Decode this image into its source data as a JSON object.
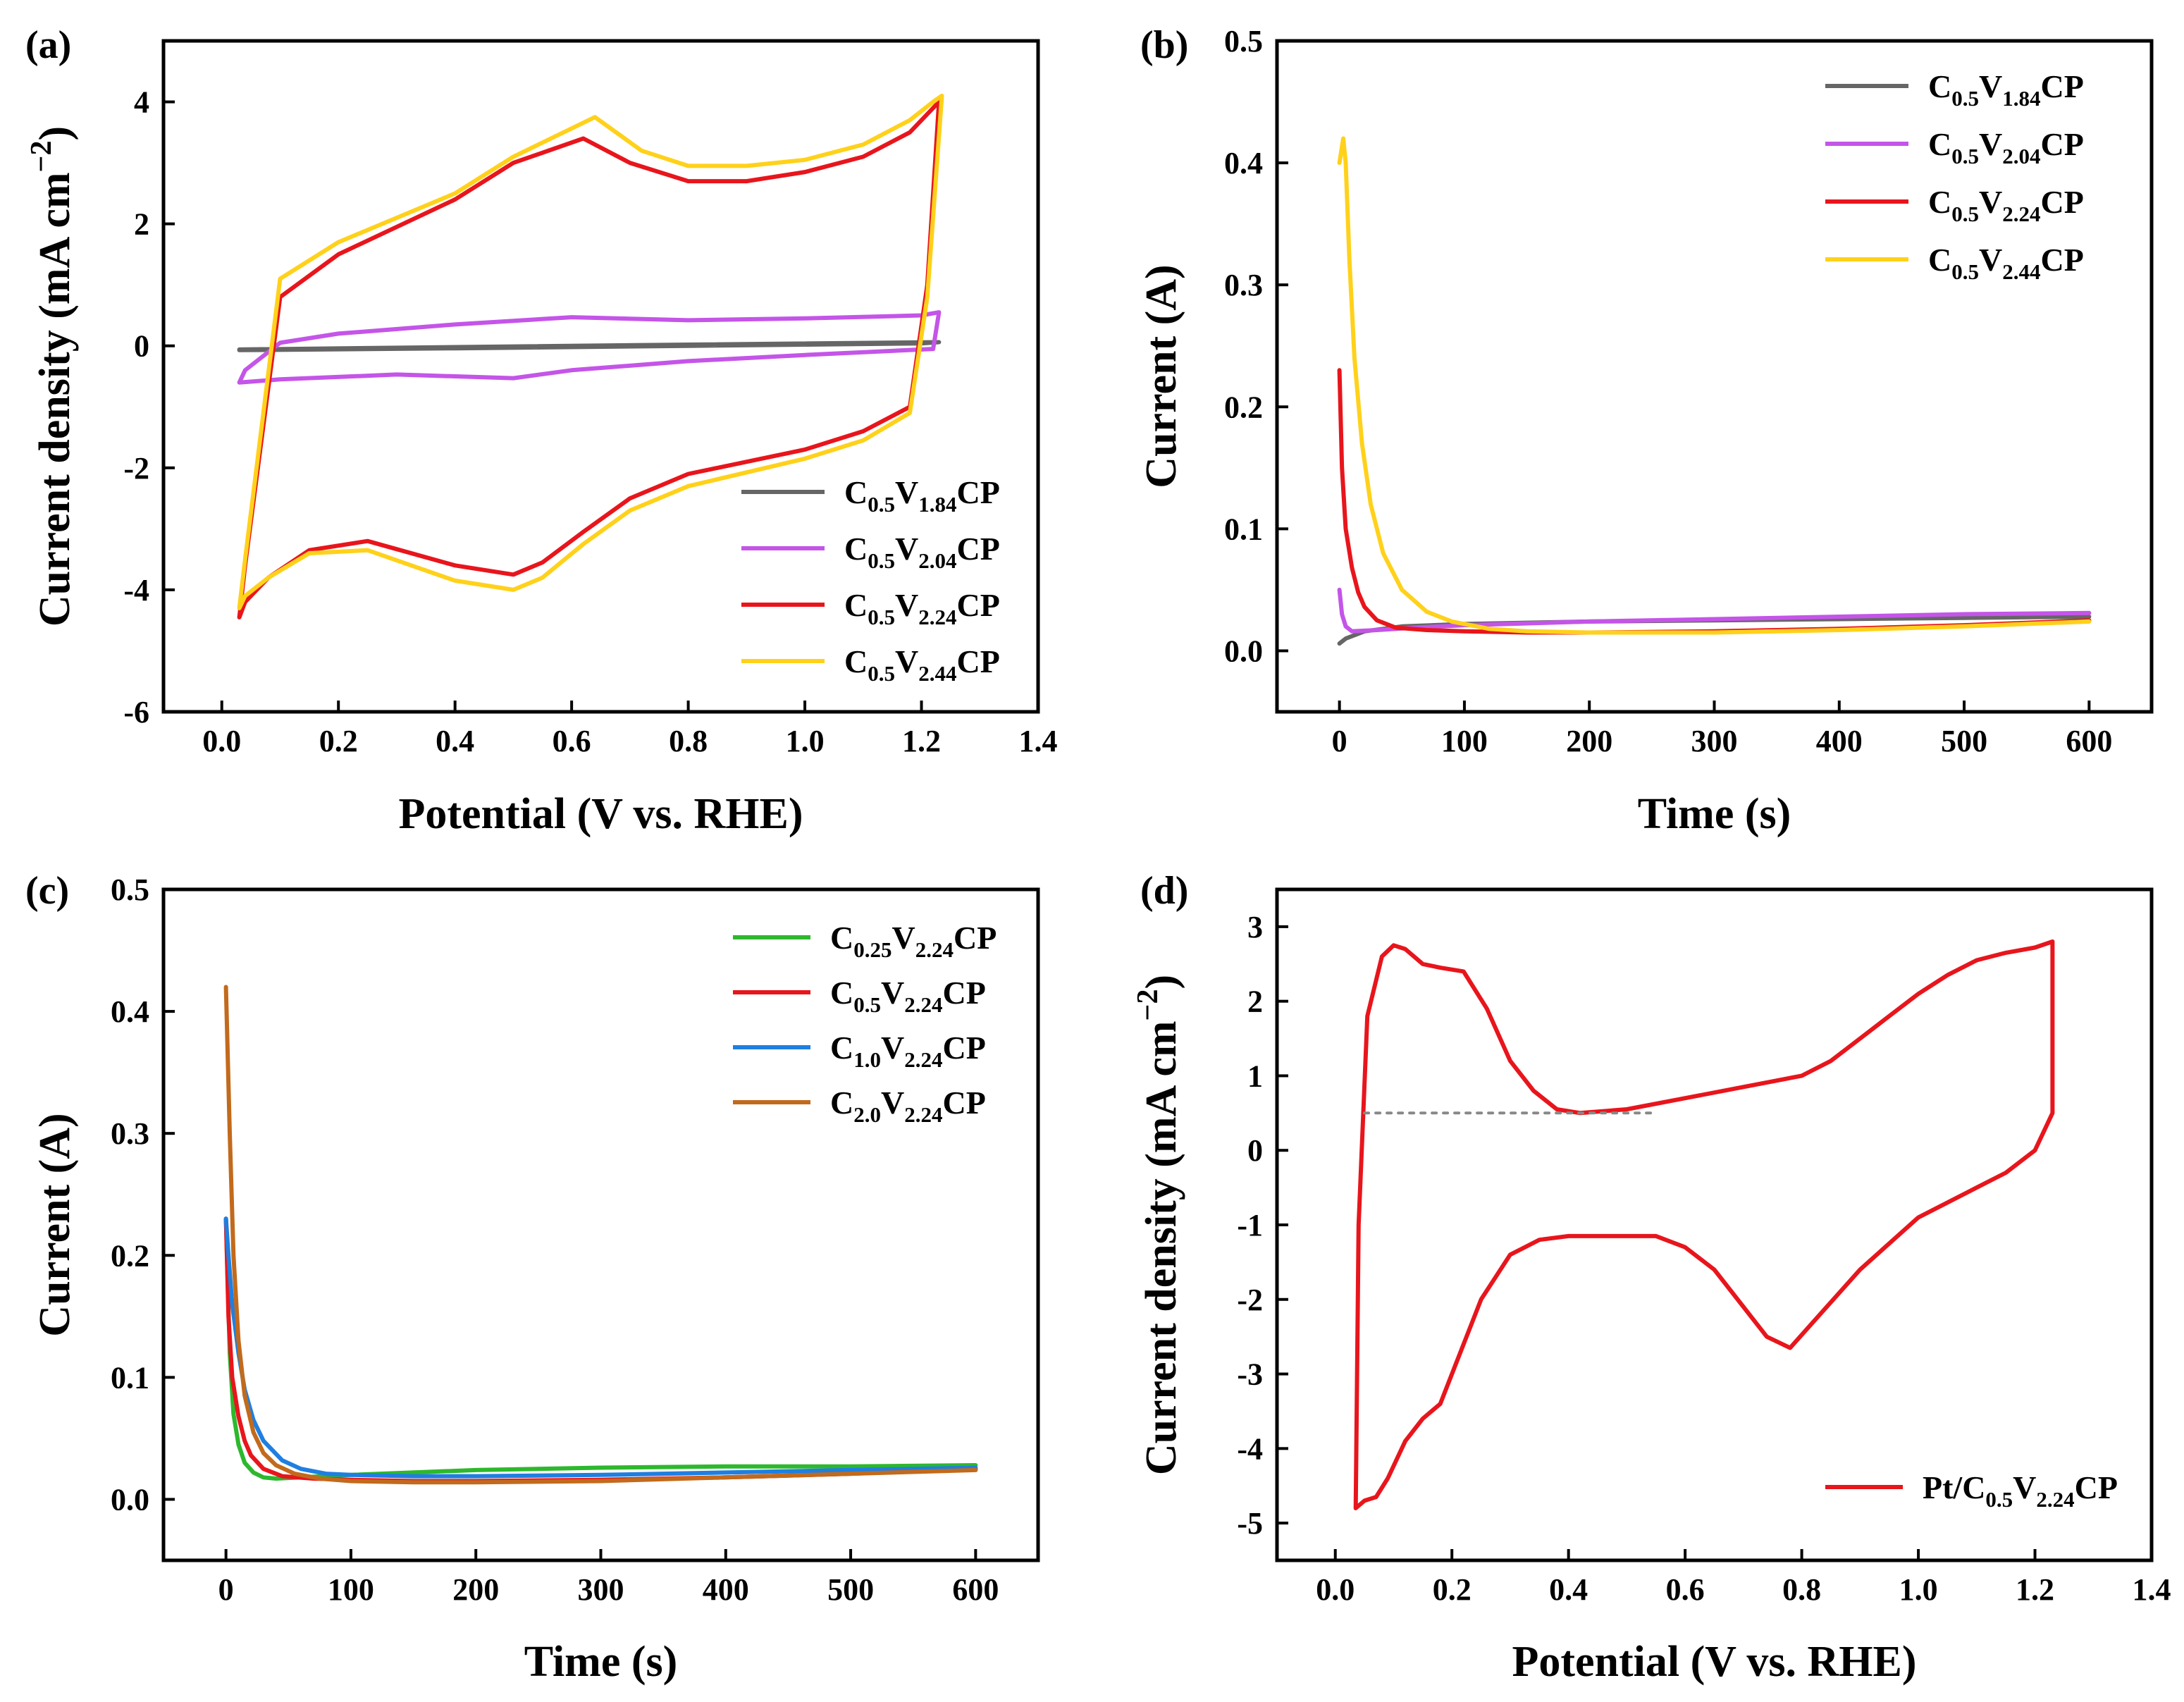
{
  "panels": [
    {
      "id": "a",
      "panel_label": "(a)",
      "xlabel": "Potential (V vs. RHE)",
      "ylabel_main": "Current density (mA cm",
      "ylabel_exp": "−2",
      "ylabel_close": ")",
      "xticks": [
        "0.0",
        "0.2",
        "0.4",
        "0.6",
        "0.8",
        "1.0",
        "1.2",
        "1.4"
      ],
      "yticks": [
        "-6",
        "-4",
        "-2",
        "0",
        "2",
        "4"
      ],
      "legend": [
        {
          "base": "C",
          "sub1": "0.5",
          "mid": "V",
          "sub2": "1.84",
          "tail": "CP",
          "color": "#666666"
        },
        {
          "base": "C",
          "sub1": "0.5",
          "mid": "V",
          "sub2": "2.04",
          "tail": "CP",
          "color": "#c455e8"
        },
        {
          "base": "C",
          "sub1": "0.5",
          "mid": "V",
          "sub2": "2.24",
          "tail": "CP",
          "color": "#e8151c"
        },
        {
          "base": "C",
          "sub1": "0.5",
          "mid": "V",
          "sub2": "2.44",
          "tail": "CP",
          "color": "#ffd11a"
        }
      ]
    },
    {
      "id": "b",
      "panel_label": "(b)",
      "xlabel": "Time (s)",
      "ylabel_main": "Current (A)",
      "xticks": [
        "0",
        "100",
        "200",
        "300",
        "400",
        "500",
        "600"
      ],
      "yticks": [
        "0.0",
        "0.1",
        "0.2",
        "0.3",
        "0.4",
        "0.5"
      ],
      "legend": [
        {
          "base": "C",
          "sub1": "0.5",
          "mid": "V",
          "sub2": "1.84",
          "tail": "CP",
          "color": "#666666"
        },
        {
          "base": "C",
          "sub1": "0.5",
          "mid": "V",
          "sub2": "2.04",
          "tail": "CP",
          "color": "#c455e8"
        },
        {
          "base": "C",
          "sub1": "0.5",
          "mid": "V",
          "sub2": "2.24",
          "tail": "CP",
          "color": "#e8151c"
        },
        {
          "base": "C",
          "sub1": "0.5",
          "mid": "V",
          "sub2": "2.44",
          "tail": "CP",
          "color": "#ffd11a"
        }
      ]
    },
    {
      "id": "c",
      "panel_label": "(c)",
      "xlabel": "Time (s)",
      "ylabel_main": "Current (A)",
      "xticks": [
        "0",
        "100",
        "200",
        "300",
        "400",
        "500",
        "600"
      ],
      "yticks": [
        "0.0",
        "0.1",
        "0.2",
        "0.3",
        "0.4",
        "0.5"
      ],
      "legend": [
        {
          "base": "C",
          "sub1": "0.25",
          "mid": "V",
          "sub2": "2.24",
          "tail": "CP",
          "color": "#2db82d"
        },
        {
          "base": "C",
          "sub1": "0.5",
          "mid": "V",
          "sub2": "2.24",
          "tail": "CP",
          "color": "#e8151c"
        },
        {
          "base": "C",
          "sub1": "1.0",
          "mid": "V",
          "sub2": "2.24",
          "tail": "CP",
          "color": "#1f7fe0"
        },
        {
          "base": "C",
          "sub1": "2.0",
          "mid": "V",
          "sub2": "2.24",
          "tail": "CP",
          "color": "#c26a1c"
        }
      ]
    },
    {
      "id": "d",
      "panel_label": "(d)",
      "xlabel": "Potential (V vs. RHE)",
      "ylabel_main": "Current density (mA cm",
      "ylabel_exp": "−2",
      "ylabel_close": ")",
      "xticks": [
        "0.0",
        "0.2",
        "0.4",
        "0.6",
        "0.8",
        "1.0",
        "1.2",
        "1.4"
      ],
      "yticks": [
        "-5",
        "-4",
        "-3",
        "-2",
        "-1",
        "0",
        "1",
        "2",
        "3"
      ],
      "legend": [
        {
          "base": "Pt/C",
          "sub1": "0.5",
          "mid": "V",
          "sub2": "2.24",
          "tail": "CP",
          "color": "#e8151c"
        }
      ]
    }
  ],
  "chart_data": [
    {
      "panel": "a",
      "type": "line",
      "title": "",
      "xlabel": "Potential (V vs. RHE)",
      "ylabel": "Current density (mA cm−2)",
      "xlim": [
        -0.1,
        1.4
      ],
      "ylim": [
        -6,
        5
      ],
      "series": [
        {
          "name": "C0.5V1.84CP",
          "color": "#666666",
          "closed": true,
          "x": [
            0.03,
            0.4,
            0.8,
            1.23,
            1.2,
            0.8,
            0.4,
            0.03
          ],
          "y": [
            -0.06,
            -0.02,
            0.02,
            0.06,
            0.04,
            0.0,
            -0.04,
            -0.07
          ]
        },
        {
          "name": "C0.5V2.04CP",
          "color": "#c455e8",
          "closed": true,
          "x": [
            0.04,
            0.1,
            0.2,
            0.4,
            0.6,
            0.8,
            1.0,
            1.2,
            1.23,
            1.22,
            1.0,
            0.8,
            0.6,
            0.5,
            0.3,
            0.1,
            0.03,
            0.04
          ],
          "y": [
            -0.4,
            0.05,
            0.2,
            0.35,
            0.47,
            0.42,
            0.45,
            0.5,
            0.55,
            -0.05,
            -0.15,
            -0.25,
            -0.4,
            -0.53,
            -0.47,
            -0.55,
            -0.6,
            -0.4
          ]
        },
        {
          "name": "C0.5V2.24CP",
          "color": "#e8151c",
          "closed": true,
          "x": [
            0.04,
            0.1,
            0.2,
            0.4,
            0.5,
            0.62,
            0.7,
            0.8,
            0.9,
            1.0,
            1.1,
            1.18,
            1.22,
            1.23,
            1.21,
            1.18,
            1.1,
            1.0,
            0.8,
            0.7,
            0.62,
            0.55,
            0.5,
            0.4,
            0.25,
            0.15,
            0.08,
            0.04,
            0.03,
            0.04
          ],
          "y": [
            -3.6,
            0.8,
            1.5,
            2.4,
            3.0,
            3.4,
            3.0,
            2.7,
            2.7,
            2.85,
            3.1,
            3.5,
            3.9,
            4.0,
            1.0,
            -1.0,
            -1.4,
            -1.7,
            -2.1,
            -2.5,
            -3.05,
            -3.55,
            -3.75,
            -3.6,
            -3.2,
            -3.35,
            -3.8,
            -4.2,
            -4.45,
            -3.6
          ]
        },
        {
          "name": "C0.5V2.44CP",
          "color": "#ffd11a",
          "closed": true,
          "x": [
            0.04,
            0.1,
            0.2,
            0.4,
            0.5,
            0.64,
            0.72,
            0.8,
            0.9,
            1.0,
            1.1,
            1.18,
            1.22,
            1.235,
            1.21,
            1.18,
            1.1,
            1.0,
            0.8,
            0.7,
            0.62,
            0.55,
            0.5,
            0.4,
            0.25,
            0.15,
            0.08,
            0.04,
            0.03,
            0.04
          ],
          "y": [
            -3.5,
            1.1,
            1.7,
            2.5,
            3.1,
            3.75,
            3.2,
            2.95,
            2.95,
            3.05,
            3.3,
            3.7,
            4.0,
            4.1,
            0.8,
            -1.1,
            -1.55,
            -1.85,
            -2.3,
            -2.7,
            -3.25,
            -3.8,
            -4.0,
            -3.85,
            -3.35,
            -3.4,
            -3.8,
            -4.1,
            -4.3,
            -3.5
          ]
        }
      ]
    },
    {
      "panel": "b",
      "type": "line",
      "title": "",
      "xlabel": "Time (s)",
      "ylabel": "Current (A)",
      "xlim": [
        -50,
        650
      ],
      "ylim": [
        -0.05,
        0.5
      ],
      "series": [
        {
          "name": "C0.5V1.84CP",
          "color": "#666666",
          "x": [
            0,
            5,
            20,
            50,
            100,
            200,
            300,
            400,
            500,
            600
          ],
          "y": [
            0.006,
            0.01,
            0.016,
            0.02,
            0.022,
            0.024,
            0.025,
            0.026,
            0.027,
            0.028
          ]
        },
        {
          "name": "C0.5V2.04CP",
          "color": "#c455e8",
          "x": [
            0,
            2,
            5,
            10,
            30,
            60,
            100,
            200,
            300,
            400,
            500,
            600
          ],
          "y": [
            0.05,
            0.03,
            0.02,
            0.016,
            0.017,
            0.019,
            0.021,
            0.024,
            0.026,
            0.028,
            0.03,
            0.031
          ]
        },
        {
          "name": "C0.5V2.24CP",
          "color": "#e8151c",
          "x": [
            0,
            2,
            5,
            10,
            15,
            20,
            30,
            45,
            70,
            100,
            150,
            200,
            300,
            400,
            500,
            600
          ],
          "y": [
            0.23,
            0.15,
            0.1,
            0.068,
            0.048,
            0.036,
            0.025,
            0.019,
            0.017,
            0.016,
            0.015,
            0.015,
            0.016,
            0.018,
            0.021,
            0.025
          ]
        },
        {
          "name": "C0.5V2.44CP",
          "color": "#ffd11a",
          "x": [
            0,
            3,
            5,
            8,
            12,
            18,
            25,
            35,
            50,
            70,
            90,
            120,
            150,
            200,
            300,
            400,
            500,
            600
          ],
          "y": [
            0.4,
            0.42,
            0.4,
            0.32,
            0.24,
            0.17,
            0.12,
            0.08,
            0.05,
            0.032,
            0.024,
            0.018,
            0.016,
            0.015,
            0.015,
            0.017,
            0.02,
            0.024
          ]
        }
      ]
    },
    {
      "panel": "c",
      "type": "line",
      "title": "",
      "xlabel": "Time (s)",
      "ylabel": "Current (A)",
      "xlim": [
        -50,
        650
      ],
      "ylim": [
        -0.05,
        0.5
      ],
      "series": [
        {
          "name": "C0.25V2.24CP",
          "color": "#2db82d",
          "x": [
            0,
            3,
            6,
            10,
            15,
            22,
            30,
            40,
            60,
            100,
            200,
            300,
            400,
            500,
            600
          ],
          "y": [
            0.23,
            0.12,
            0.07,
            0.045,
            0.03,
            0.022,
            0.018,
            0.017,
            0.018,
            0.02,
            0.024,
            0.026,
            0.027,
            0.027,
            0.028
          ]
        },
        {
          "name": "C0.5V2.24CP",
          "color": "#e8151c",
          "x": [
            0,
            2,
            5,
            10,
            15,
            20,
            30,
            45,
            70,
            100,
            150,
            200,
            300,
            400,
            500,
            600
          ],
          "y": [
            0.23,
            0.15,
            0.1,
            0.068,
            0.048,
            0.036,
            0.025,
            0.019,
            0.017,
            0.016,
            0.015,
            0.015,
            0.016,
            0.018,
            0.021,
            0.025
          ]
        },
        {
          "name": "C1.0V2.24CP",
          "color": "#1f7fe0",
          "x": [
            0,
            2,
            5,
            10,
            15,
            22,
            30,
            45,
            60,
            80,
            100,
            150,
            200,
            300,
            400,
            500,
            600
          ],
          "y": [
            0.23,
            0.2,
            0.16,
            0.12,
            0.09,
            0.065,
            0.048,
            0.032,
            0.025,
            0.021,
            0.02,
            0.019,
            0.019,
            0.02,
            0.022,
            0.024,
            0.026
          ]
        },
        {
          "name": "C2.0V2.24CP",
          "color": "#c26a1c",
          "x": [
            0,
            3,
            6,
            10,
            15,
            22,
            30,
            40,
            55,
            75,
            100,
            150,
            200,
            300,
            400,
            500,
            600
          ],
          "y": [
            0.42,
            0.3,
            0.2,
            0.13,
            0.085,
            0.055,
            0.038,
            0.028,
            0.021,
            0.017,
            0.015,
            0.014,
            0.014,
            0.015,
            0.018,
            0.021,
            0.024
          ]
        }
      ]
    },
    {
      "panel": "d",
      "type": "line",
      "title": "",
      "xlabel": "Potential (V vs. RHE)",
      "ylabel": "Current density (mA cm−2)",
      "xlim": [
        -0.1,
        1.4
      ],
      "ylim": [
        -5.5,
        3.5
      ],
      "series": [
        {
          "name": "Pt/C0.5V2.24CP",
          "color": "#e8151c",
          "closed": true,
          "x": [
            0.035,
            0.04,
            0.055,
            0.08,
            0.1,
            0.12,
            0.15,
            0.18,
            0.22,
            0.26,
            0.3,
            0.34,
            0.38,
            0.42,
            0.5,
            0.6,
            0.7,
            0.8,
            0.85,
            0.9,
            0.95,
            1.0,
            1.05,
            1.1,
            1.15,
            1.2,
            1.23,
            1.23,
            1.2,
            1.15,
            1.1,
            1.0,
            0.9,
            0.82,
            0.78,
            0.74,
            0.7,
            0.65,
            0.6,
            0.55,
            0.45,
            0.4,
            0.35,
            0.3,
            0.25,
            0.2,
            0.18,
            0.15,
            0.12,
            0.09,
            0.07,
            0.05,
            0.035
          ],
          "y": [
            -4.8,
            -1.0,
            1.8,
            2.6,
            2.75,
            2.7,
            2.5,
            2.45,
            2.4,
            1.9,
            1.2,
            0.8,
            0.55,
            0.5,
            0.55,
            0.7,
            0.85,
            1.0,
            1.2,
            1.5,
            1.8,
            2.1,
            2.35,
            2.55,
            2.65,
            2.72,
            2.8,
            0.5,
            0.0,
            -0.3,
            -0.5,
            -0.9,
            -1.6,
            -2.3,
            -2.65,
            -2.5,
            -2.1,
            -1.6,
            -1.3,
            -1.15,
            -1.15,
            -1.15,
            -1.2,
            -1.4,
            -2.0,
            -3.0,
            -3.4,
            -3.6,
            -3.9,
            -4.4,
            -4.65,
            -4.7,
            -4.8
          ]
        },
        {
          "name": "baseline",
          "color": "#888888",
          "dashed": true,
          "closed": false,
          "x": [
            0.05,
            0.55
          ],
          "y": [
            0.5,
            0.5
          ]
        }
      ]
    }
  ]
}
